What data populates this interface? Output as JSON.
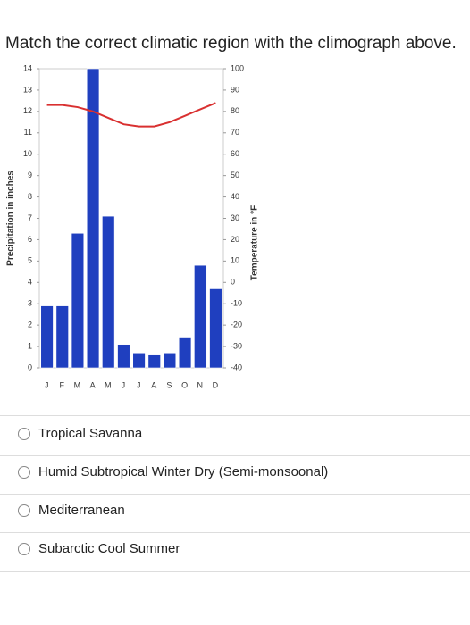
{
  "question": "Match the correct climatic region with the climograph above.",
  "chart_data": {
    "type": "bar",
    "y_label": "Precipitation in inches",
    "y2_label": "Temperature in °F",
    "categories": [
      "J",
      "F",
      "M",
      "A",
      "M",
      "J",
      "J",
      "A",
      "S",
      "O",
      "N",
      "D"
    ],
    "series": [
      {
        "color": "#1f3fbf",
        "values": [
          2.9,
          2.9,
          6.3,
          14,
          7.1,
          1.1,
          0.7,
          0.6,
          0.7,
          1.4,
          4.8,
          3.7
        ]
      },
      {
        "type": "line",
        "axis": "y2",
        "color": "#d93030",
        "values": [
          83,
          83,
          82,
          80,
          77,
          74,
          73,
          73,
          75,
          78,
          81,
          84
        ]
      }
    ],
    "ylim": [
      0,
      14
    ],
    "yticks": [
      0,
      1,
      2,
      3,
      4,
      5,
      6,
      7,
      8,
      9,
      10,
      11,
      12,
      13,
      14
    ],
    "y2lim": [
      -40,
      100
    ],
    "y2ticks": [
      -40,
      -30,
      -20,
      -10,
      0,
      10,
      20,
      30,
      40,
      50,
      60,
      70,
      80,
      90,
      100
    ]
  },
  "options": [
    "Tropical Savanna",
    "Humid Subtropical Winter Dry (Semi-monsoonal)",
    "Mediterranean",
    "Subarctic Cool Summer"
  ]
}
